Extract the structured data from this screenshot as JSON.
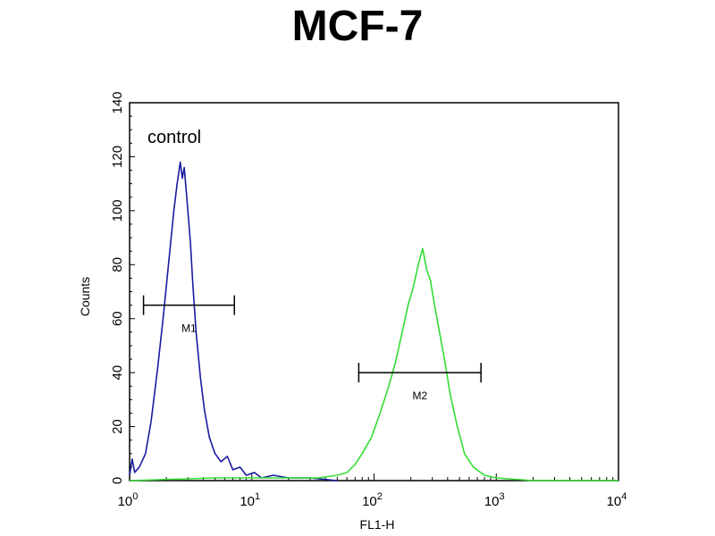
{
  "chart_data": {
    "type": "line",
    "title": "MCF-7",
    "xlabel": "FL1-H",
    "ylabel": "Counts",
    "xscale": "log",
    "xlim": [
      1,
      10000
    ],
    "ylim": [
      0,
      140
    ],
    "x_ticks": [
      {
        "value": 1,
        "label": "0"
      },
      {
        "value": 10,
        "label": "1"
      },
      {
        "value": 100,
        "label": "2"
      },
      {
        "value": 1000,
        "label": "3"
      },
      {
        "value": 10000,
        "label": "4"
      }
    ],
    "x_tick_base": "10",
    "y_ticks": [
      0,
      20,
      40,
      60,
      80,
      100,
      120,
      140
    ],
    "grid": false,
    "annotation": "control",
    "series": [
      {
        "color": "#1a1aa0",
        "x": [
          1.0,
          1.05,
          1.1,
          1.2,
          1.35,
          1.5,
          1.7,
          1.9,
          2.1,
          2.3,
          2.45,
          2.6,
          2.7,
          2.8,
          2.9,
          3.0,
          3.15,
          3.3,
          3.5,
          3.8,
          4.1,
          4.5,
          5.0,
          5.6,
          6.3,
          7.0,
          8.0,
          9.0,
          10.5,
          12,
          15,
          20,
          30,
          50
        ],
        "y": [
          2,
          8,
          3,
          5,
          10,
          22,
          42,
          62,
          82,
          100,
          110,
          118,
          112,
          116,
          108,
          100,
          88,
          72,
          55,
          38,
          26,
          16,
          10,
          7,
          9,
          4,
          5,
          2,
          3,
          1,
          2,
          1,
          1,
          0
        ]
      },
      {
        "color": "#33dd33",
        "x": [
          1,
          5,
          10,
          20,
          35,
          50,
          60,
          70,
          80,
          95,
          110,
          130,
          150,
          170,
          190,
          210,
          230,
          250,
          270,
          290,
          310,
          340,
          380,
          420,
          480,
          550,
          650,
          800,
          1000,
          2000,
          10000
        ],
        "y": [
          0,
          1,
          1,
          1,
          1,
          2,
          3,
          6,
          10,
          16,
          24,
          34,
          44,
          55,
          65,
          72,
          80,
          86,
          78,
          74,
          66,
          56,
          44,
          32,
          20,
          10,
          5,
          2,
          1,
          0,
          0
        ]
      }
    ],
    "markers": [
      {
        "label": "M1",
        "x_start": 1.3,
        "x_end": 7.2,
        "y": 65
      },
      {
        "label": "M2",
        "x_start": 75,
        "x_end": 750,
        "y": 40
      }
    ]
  }
}
